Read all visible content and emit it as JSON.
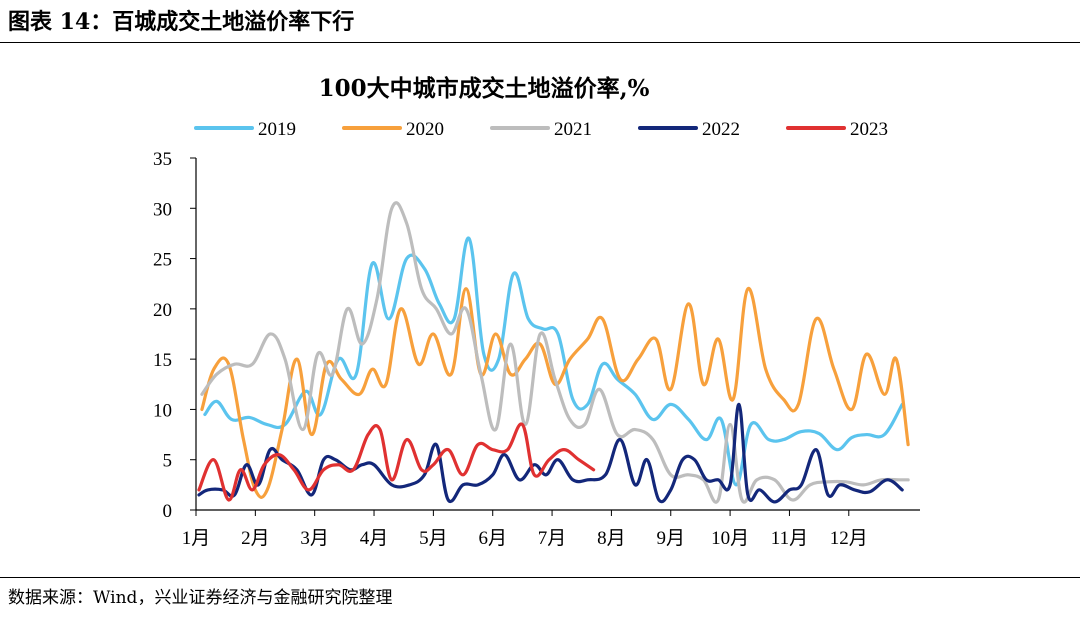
{
  "figure_title": "图表 14：百城成交土地溢价率下行",
  "source": "数据来源：Wind，兴业证券经济与金融研究院整理",
  "chart_data": {
    "type": "line",
    "title": "100大中城市成交土地溢价率,%",
    "xlabel": "",
    "ylabel": "",
    "ylim": [
      0,
      35
    ],
    "yticks": [
      0,
      5,
      10,
      15,
      20,
      25,
      30,
      35
    ],
    "xlim": [
      1,
      13.2
    ],
    "xticks": [
      {
        "label": "1月",
        "value": 1
      },
      {
        "label": "2月",
        "value": 2
      },
      {
        "label": "3月",
        "value": 3
      },
      {
        "label": "4月",
        "value": 4
      },
      {
        "label": "5月",
        "value": 5
      },
      {
        "label": "6月",
        "value": 6
      },
      {
        "label": "7月",
        "value": 7
      },
      {
        "label": "8月",
        "value": 8
      },
      {
        "label": "9月",
        "value": 9
      },
      {
        "label": "10月",
        "value": 10
      },
      {
        "label": "11月",
        "value": 11
      },
      {
        "label": "12月",
        "value": 12
      }
    ],
    "legend_position": "top",
    "grid": false,
    "series": [
      {
        "name": "2019",
        "color": "#5BC4EE",
        "x": [
          1.15,
          1.35,
          1.6,
          1.9,
          2.2,
          2.5,
          2.85,
          3.1,
          3.4,
          3.7,
          3.97,
          4.25,
          4.55,
          4.85,
          5.1,
          5.35,
          5.6,
          5.85,
          6.1,
          6.35,
          6.6,
          6.85,
          7.1,
          7.35,
          7.6,
          7.85,
          8.1,
          8.4,
          8.7,
          9.0,
          9.3,
          9.6,
          9.85,
          10.1,
          10.35,
          10.65,
          10.9,
          11.2,
          11.5,
          11.8,
          12.05,
          12.3,
          12.6,
          12.9
        ],
        "y": [
          9.5,
          10.8,
          9.0,
          9.2,
          8.5,
          8.5,
          11.8,
          9.5,
          15.0,
          13.5,
          24.5,
          19.0,
          25.0,
          24.0,
          20.5,
          19.0,
          27.0,
          15.5,
          15.0,
          23.5,
          19.0,
          18.0,
          17.5,
          11.0,
          10.5,
          14.5,
          13.0,
          11.5,
          9.0,
          10.5,
          9.0,
          7.0,
          9.0,
          2.5,
          8.5,
          7.0,
          7.0,
          7.8,
          7.6,
          6.0,
          7.2,
          7.5,
          7.5,
          10.5
        ]
      },
      {
        "name": "2020",
        "color": "#F7A03C",
        "x": [
          1.1,
          1.3,
          1.55,
          1.8,
          2.0,
          2.2,
          2.45,
          2.7,
          2.95,
          3.2,
          3.45,
          3.75,
          3.97,
          4.2,
          4.45,
          4.75,
          5.0,
          5.3,
          5.55,
          5.8,
          6.05,
          6.3,
          6.55,
          6.8,
          7.05,
          7.3,
          7.6,
          7.85,
          8.15,
          8.45,
          8.75,
          9.0,
          9.3,
          9.55,
          9.8,
          10.05,
          10.3,
          10.6,
          10.9,
          11.15,
          11.45,
          11.75,
          12.05,
          12.3,
          12.6,
          12.8,
          13.0
        ],
        "y": [
          10.0,
          14.0,
          14.5,
          7.0,
          2.0,
          2.0,
          8.0,
          15.0,
          7.5,
          14.5,
          13.0,
          11.5,
          14.0,
          12.5,
          20.0,
          14.5,
          17.5,
          13.5,
          22.0,
          13.5,
          17.5,
          13.5,
          15.0,
          16.5,
          12.5,
          15.0,
          17.0,
          19.0,
          13.0,
          15.0,
          17.0,
          12.0,
          20.5,
          12.5,
          17.0,
          11.0,
          22.0,
          14.0,
          11.0,
          10.5,
          19.0,
          14.0,
          10.0,
          15.5,
          11.5,
          15.0,
          6.5
        ]
      },
      {
        "name": "2021",
        "color": "#BDBDBD",
        "x": [
          1.1,
          1.35,
          1.65,
          1.95,
          2.25,
          2.5,
          2.8,
          3.05,
          3.3,
          3.55,
          3.8,
          4.05,
          4.3,
          4.55,
          4.8,
          5.05,
          5.3,
          5.55,
          5.8,
          6.05,
          6.3,
          6.55,
          6.8,
          7.05,
          7.3,
          7.55,
          7.8,
          8.1,
          8.4,
          8.7,
          9.0,
          9.3,
          9.55,
          9.8,
          10.0,
          10.2,
          10.45,
          10.75,
          11.05,
          11.35,
          11.65,
          11.95,
          12.25,
          12.55,
          12.85,
          13.0
        ],
        "y": [
          11.5,
          13.5,
          14.5,
          14.5,
          17.5,
          15.0,
          8.0,
          15.5,
          13.5,
          20.0,
          16.5,
          21.0,
          30.0,
          28.5,
          22.0,
          20.0,
          17.5,
          20.0,
          13.5,
          8.0,
          16.5,
          8.5,
          17.5,
          13.0,
          9.0,
          8.5,
          12.0,
          7.5,
          8.0,
          7.0,
          3.5,
          3.5,
          3.0,
          1.0,
          8.5,
          1.0,
          3.0,
          3.0,
          1.0,
          2.5,
          2.8,
          2.8,
          2.5,
          3.0,
          3.0,
          3.0
        ]
      },
      {
        "name": "2022",
        "color": "#13277A",
        "x": [
          1.05,
          1.2,
          1.45,
          1.65,
          1.85,
          2.05,
          2.25,
          2.45,
          2.7,
          2.95,
          3.15,
          3.35,
          3.6,
          3.8,
          4.0,
          4.3,
          4.6,
          4.85,
          5.05,
          5.25,
          5.5,
          5.75,
          6.0,
          6.2,
          6.45,
          6.7,
          6.9,
          7.1,
          7.35,
          7.6,
          7.9,
          8.15,
          8.4,
          8.6,
          8.8,
          9.0,
          9.2,
          9.4,
          9.6,
          9.8,
          10.0,
          10.15,
          10.3,
          10.5,
          10.75,
          11.0,
          11.2,
          11.45,
          11.65,
          11.85,
          12.1,
          12.35,
          12.65,
          12.9
        ],
        "y": [
          1.5,
          2.0,
          2.0,
          1.5,
          4.5,
          2.5,
          6.0,
          5.0,
          4.0,
          1.5,
          5.0,
          5.0,
          4.0,
          4.5,
          4.5,
          2.5,
          2.5,
          3.5,
          6.5,
          1.0,
          2.5,
          2.5,
          3.5,
          5.5,
          3.0,
          4.5,
          3.5,
          5.0,
          3.0,
          3.0,
          3.5,
          7.0,
          2.5,
          5.0,
          1.0,
          2.0,
          5.0,
          5.0,
          3.0,
          3.0,
          2.5,
          10.5,
          1.5,
          2.0,
          0.8,
          2.0,
          2.5,
          6.0,
          1.5,
          2.5,
          2.0,
          1.8,
          3.0,
          2.0
        ]
      },
      {
        "name": "2023",
        "color": "#E03131",
        "x": [
          1.05,
          1.3,
          1.55,
          1.75,
          1.95,
          2.15,
          2.4,
          2.65,
          2.9,
          3.15,
          3.4,
          3.65,
          3.9,
          4.1,
          4.3,
          4.55,
          4.8,
          5.0,
          5.25,
          5.5,
          5.75,
          6.0,
          6.25,
          6.5,
          6.7,
          6.95,
          7.2,
          7.45,
          7.7
        ],
        "y": [
          2.0,
          5.0,
          1.0,
          4.0,
          2.0,
          4.5,
          5.5,
          4.0,
          2.0,
          4.0,
          4.5,
          4.0,
          7.5,
          8.0,
          3.0,
          7.0,
          4.0,
          4.5,
          6.0,
          3.5,
          6.5,
          6.0,
          6.0,
          8.5,
          3.5,
          5.0,
          6.0,
          5.0,
          4.0
        ]
      }
    ]
  }
}
